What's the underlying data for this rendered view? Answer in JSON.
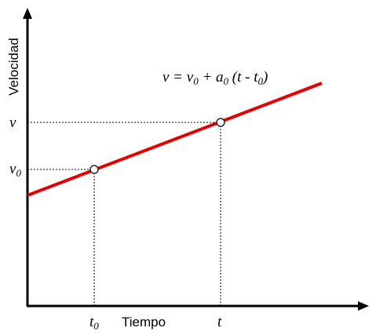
{
  "axes": {
    "y_label": "Velocidad",
    "x_label": "Tiempo"
  },
  "y_marks": [
    {
      "base": "v"
    },
    {
      "base": "v",
      "sub": "0"
    }
  ],
  "x_marks": [
    {
      "base": "t",
      "sub": "0"
    },
    {
      "base": "t"
    }
  ],
  "formula": [
    "v = v",
    "0",
    " + a",
    "0",
    " (t - t",
    "0",
    ")"
  ]
}
